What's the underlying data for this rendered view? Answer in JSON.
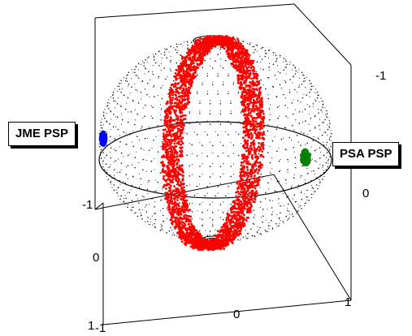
{
  "labels": {
    "left": "JME PSP",
    "right": "PSA PSP"
  },
  "ticks": {
    "right_top": "-1",
    "right_mid": "0",
    "right_bottom": "1",
    "left_top": "-1",
    "left_mid": "0",
    "left_bottom": "1",
    "bottom_left": "-1",
    "bottom_mid": "0"
  },
  "colors": {
    "sphere_points": "#000000",
    "band": "#ff0000",
    "left_cluster": "#0000ff",
    "right_cluster": "#008000",
    "frame": "#000000"
  }
}
